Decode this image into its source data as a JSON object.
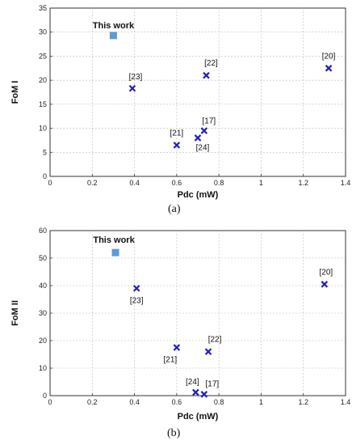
{
  "charts": [
    {
      "type": "scatter",
      "xlabel": "Pdc (mW)",
      "ylabel": "FoM I",
      "xlim": [
        0,
        1.4
      ],
      "ylim": [
        0,
        35
      ],
      "xticks": [
        0,
        0.2,
        0.4,
        0.6,
        0.8,
        1,
        1.2,
        1.4
      ],
      "yticks": [
        0,
        5,
        10,
        15,
        20,
        25,
        30,
        35
      ],
      "grid": true,
      "caption": "(a)",
      "points": [
        {
          "label": "This work",
          "x": 0.3,
          "y": 29.3,
          "marker": "square",
          "color": "#5b9bd5"
        },
        {
          "label": "[23]",
          "x": 0.39,
          "y": 18.3,
          "marker": "x",
          "color": "#1f1fbf"
        },
        {
          "label": "[22]",
          "x": 0.74,
          "y": 21.0,
          "marker": "x",
          "color": "#1f1fbf"
        },
        {
          "label": "[20]",
          "x": 1.32,
          "y": 22.5,
          "marker": "x",
          "color": "#1f1fbf"
        },
        {
          "label": "[21]",
          "x": 0.6,
          "y": 6.5,
          "marker": "x",
          "color": "#1f1fbf"
        },
        {
          "label": "[17]",
          "x": 0.73,
          "y": 9.5,
          "marker": "x",
          "color": "#1f1fbf"
        },
        {
          "label": "[24]",
          "x": 0.7,
          "y": 8.0,
          "marker": "x",
          "color": "#1f1fbf"
        }
      ]
    },
    {
      "type": "scatter",
      "xlabel": "Pdc (mW)",
      "ylabel": "FoM II",
      "xlim": [
        0,
        1.4
      ],
      "ylim": [
        0,
        60
      ],
      "xticks": [
        0,
        0.2,
        0.4,
        0.6,
        0.8,
        1,
        1.2,
        1.4
      ],
      "yticks": [
        0,
        10,
        20,
        30,
        40,
        50,
        60
      ],
      "grid": true,
      "caption": "(b)",
      "points": [
        {
          "label": "This work",
          "x": 0.31,
          "y": 52.0,
          "marker": "square",
          "color": "#5b9bd5"
        },
        {
          "label": "[23]",
          "x": 0.41,
          "y": 39.0,
          "marker": "x",
          "color": "#1f1fbf"
        },
        {
          "label": "[20]",
          "x": 1.3,
          "y": 40.5,
          "marker": "x",
          "color": "#1f1fbf"
        },
        {
          "label": "[21]",
          "x": 0.6,
          "y": 17.5,
          "marker": "x",
          "color": "#1f1fbf"
        },
        {
          "label": "[22]",
          "x": 0.75,
          "y": 16.0,
          "marker": "x",
          "color": "#1f1fbf"
        },
        {
          "label": "[24]",
          "x": 0.69,
          "y": 1.2,
          "marker": "x",
          "color": "#1f1fbf"
        },
        {
          "label": "[17]",
          "x": 0.73,
          "y": 0.5,
          "marker": "x",
          "color": "#1f1fbf"
        }
      ]
    }
  ]
}
